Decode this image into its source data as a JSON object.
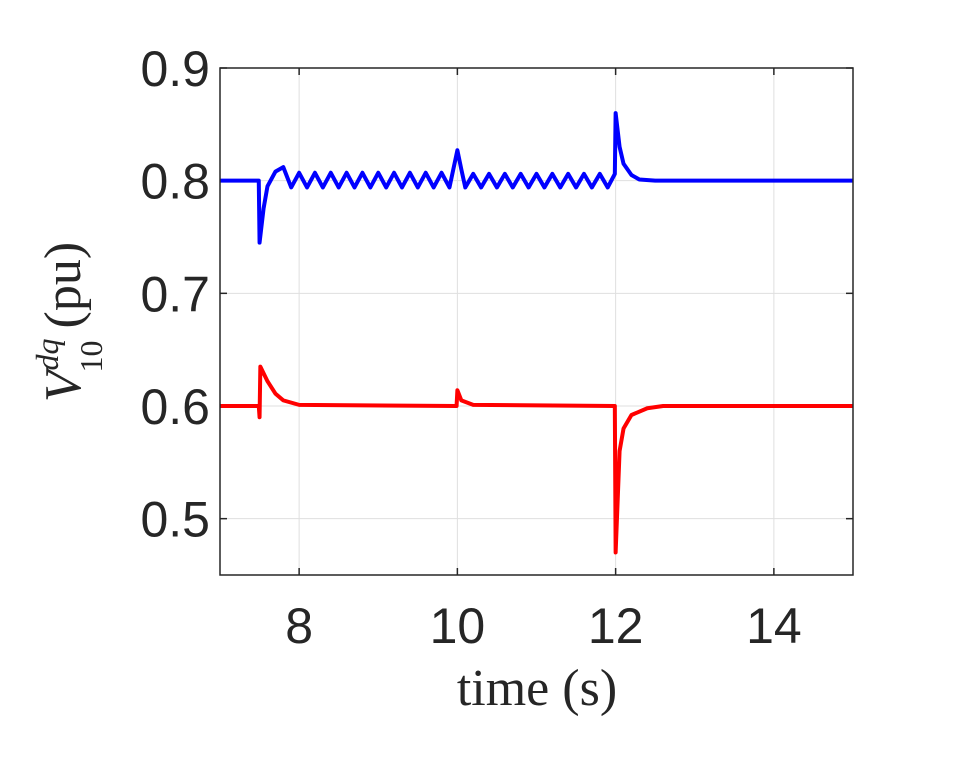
{
  "chart_data": {
    "type": "line",
    "xlabel": "time (s)",
    "ylabel": {
      "base": "V",
      "sub": "10",
      "sup": "dq",
      "unit": "(pu)"
    },
    "xlim": [
      7,
      15
    ],
    "ylim": [
      0.45,
      0.9
    ],
    "xticks": [
      8,
      10,
      12,
      14
    ],
    "yticks": [
      0.5,
      0.6,
      0.7,
      0.8,
      0.9
    ],
    "grid": true,
    "series": [
      {
        "color": "#0000ff",
        "x": [
          7,
          7.49,
          7.5,
          7.55,
          7.6,
          7.7,
          7.8,
          7.9,
          8.0,
          8.1,
          8.2,
          8.3,
          8.4,
          8.5,
          8.6,
          8.7,
          8.8,
          8.9,
          9.0,
          9.1,
          9.2,
          9.3,
          9.4,
          9.5,
          9.6,
          9.7,
          9.8,
          9.9,
          10.0,
          10.05,
          10.1,
          10.2,
          10.3,
          10.4,
          10.5,
          10.6,
          10.7,
          10.8,
          10.9,
          11.0,
          11.1,
          11.2,
          11.3,
          11.4,
          11.5,
          11.6,
          11.7,
          11.8,
          11.9,
          11.99,
          12.0,
          12.05,
          12.1,
          12.2,
          12.3,
          12.5,
          13,
          14,
          15
        ],
        "values": [
          0.8,
          0.8,
          0.745,
          0.775,
          0.795,
          0.808,
          0.812,
          0.794,
          0.807,
          0.794,
          0.807,
          0.794,
          0.807,
          0.794,
          0.807,
          0.794,
          0.807,
          0.794,
          0.807,
          0.794,
          0.807,
          0.794,
          0.807,
          0.794,
          0.807,
          0.794,
          0.807,
          0.794,
          0.827,
          0.81,
          0.794,
          0.806,
          0.794,
          0.806,
          0.794,
          0.806,
          0.794,
          0.806,
          0.794,
          0.806,
          0.794,
          0.806,
          0.794,
          0.806,
          0.794,
          0.806,
          0.794,
          0.806,
          0.794,
          0.806,
          0.86,
          0.83,
          0.815,
          0.805,
          0.801,
          0.8,
          0.8,
          0.8,
          0.8
        ]
      },
      {
        "color": "#ff0000",
        "x": [
          7,
          7.49,
          7.5,
          7.51,
          7.6,
          7.7,
          7.8,
          8.0,
          9.99,
          10.0,
          10.05,
          10.2,
          11.99,
          12.0,
          12.05,
          12.1,
          12.2,
          12.4,
          12.6,
          15
        ],
        "values": [
          0.6,
          0.6,
          0.59,
          0.635,
          0.622,
          0.611,
          0.605,
          0.601,
          0.6,
          0.614,
          0.605,
          0.601,
          0.6,
          0.47,
          0.56,
          0.58,
          0.592,
          0.598,
          0.6,
          0.6
        ]
      }
    ]
  }
}
